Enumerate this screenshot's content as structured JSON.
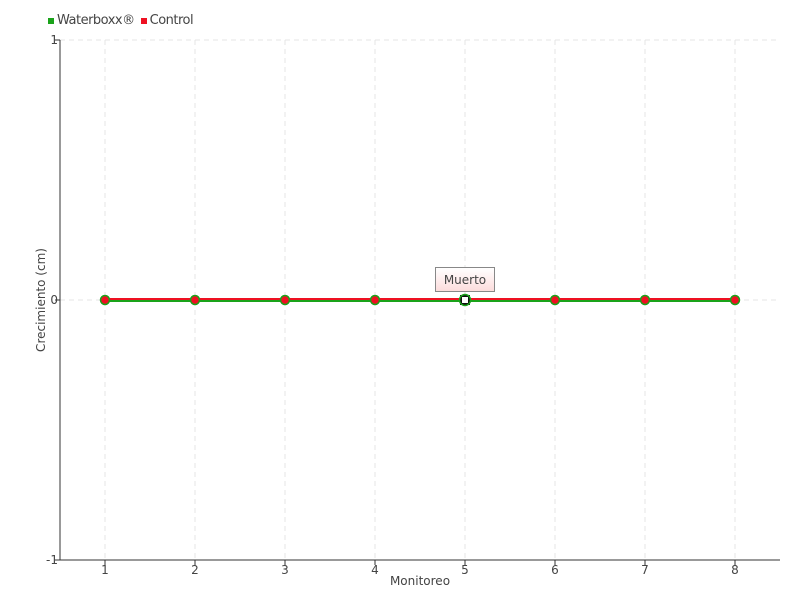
{
  "chart_data": {
    "type": "line",
    "title": "",
    "xlabel": "Monitoreo",
    "ylabel": "Crecimiento (cm)",
    "categories": [
      "1",
      "2",
      "3",
      "4",
      "5",
      "6",
      "7",
      "8"
    ],
    "yticks": [
      "1",
      "0",
      "-1"
    ],
    "ylim": [
      -1,
      1
    ],
    "grid": true,
    "legend_placement": "top-left",
    "series": [
      {
        "name": "Waterboxx®",
        "color": "#1aa31a",
        "values": [
          0,
          0,
          0,
          0,
          0,
          0,
          0,
          0
        ]
      },
      {
        "name": "Control",
        "color": "#ee1122",
        "values": [
          0,
          0,
          0,
          0,
          0,
          0,
          0,
          0
        ]
      }
    ],
    "tooltip": {
      "category": "5",
      "text": "Muerto"
    }
  }
}
